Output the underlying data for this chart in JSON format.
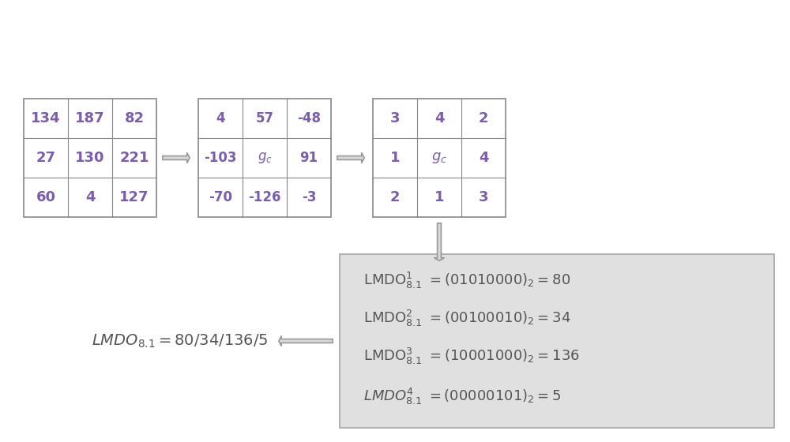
{
  "grid1": [
    [
      "134",
      "187",
      "82"
    ],
    [
      "27",
      "130",
      "221"
    ],
    [
      "60",
      "4",
      "127"
    ]
  ],
  "grid2": [
    [
      "4",
      "57",
      "-48"
    ],
    [
      "-103",
      "g_c",
      "91"
    ],
    [
      "-70",
      "-126",
      "-3"
    ]
  ],
  "grid3": [
    [
      "3",
      "4",
      "2"
    ],
    [
      "1",
      "g_c",
      "4"
    ],
    [
      "2",
      "1",
      "3"
    ]
  ],
  "text_color": "#7b5ea7",
  "grid_line_color": "#888888",
  "arrow_fc": "#d8d8d8",
  "arrow_ec": "#999999",
  "box_bg": "#e0e0e0",
  "box_edge": "#aaaaaa",
  "lmdo_text_color": "#555555",
  "result_text_color": "#555555"
}
